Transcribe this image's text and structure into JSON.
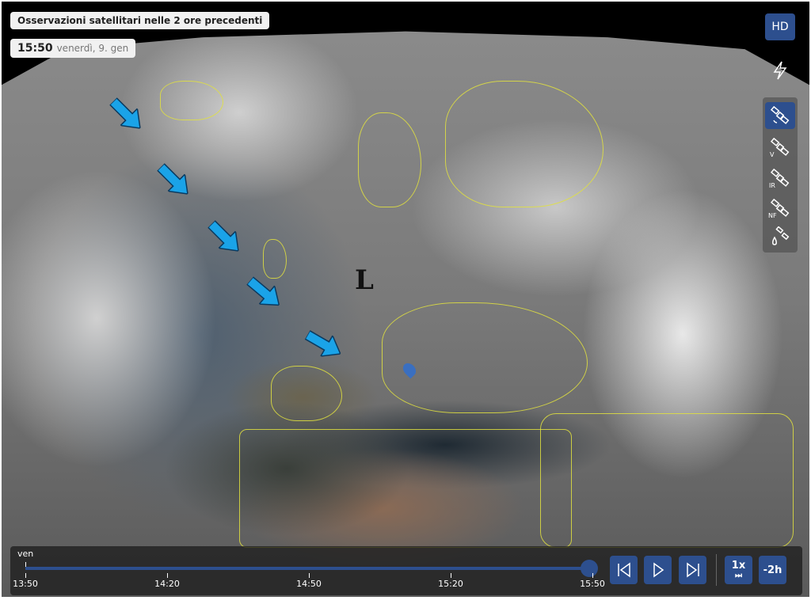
{
  "header": {
    "title": "Osservazioni satellitari nelle 2 ore precedenti",
    "time": "15:50",
    "date": "venerdì, 9. gen"
  },
  "side_toolbar": {
    "hd_label": "HD",
    "items": [
      {
        "icon": "lightning-icon",
        "label": ""
      },
      {
        "icon": "satellite-icon",
        "label": "",
        "active": true
      },
      {
        "icon": "satellite-icon",
        "label": "V"
      },
      {
        "icon": "satellite-icon",
        "label": "IR"
      },
      {
        "icon": "satellite-icon",
        "label": "NF"
      },
      {
        "icon": "satellite-drop-icon",
        "label": ""
      }
    ]
  },
  "map": {
    "low_pressure_label": "L",
    "arrow_color": "#1aa3e8",
    "border_color": "#e0e040"
  },
  "timeline": {
    "day": "ven",
    "ticks": [
      "13:50",
      "14:20",
      "14:50",
      "15:20",
      "15:50"
    ],
    "progress": 1.0,
    "speed_label": "1x",
    "range_label": "-2h"
  },
  "colors": {
    "accent": "#2d4f8e"
  }
}
